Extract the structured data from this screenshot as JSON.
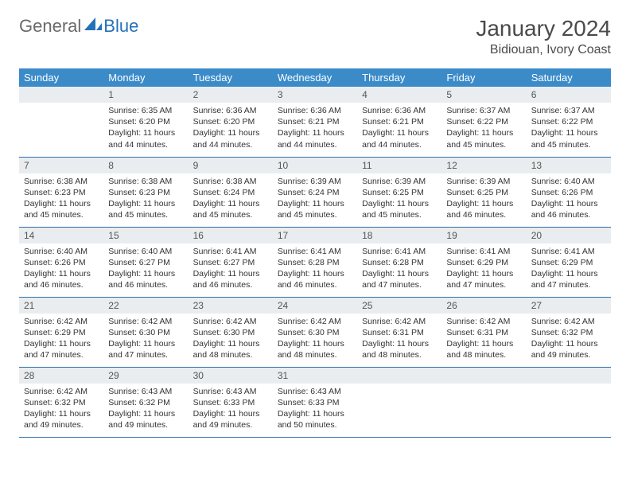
{
  "brand": {
    "part1": "General",
    "part2": "Blue"
  },
  "title": {
    "month": "January 2024",
    "location": "Bidiouan, Ivory Coast"
  },
  "colors": {
    "header_bg": "#3b8bc9",
    "header_text": "#ffffff",
    "daynum_bg": "#e9edf0",
    "row_border": "#2f6ea8",
    "logo_gray": "#6a6a6a",
    "logo_blue": "#2571b8"
  },
  "weekdays": [
    "Sunday",
    "Monday",
    "Tuesday",
    "Wednesday",
    "Thursday",
    "Friday",
    "Saturday"
  ],
  "layout": {
    "first_weekday_index": 1,
    "days_in_month": 31
  },
  "days": {
    "1": {
      "sunrise": "6:35 AM",
      "sunset": "6:20 PM",
      "daylight": "11 hours and 44 minutes."
    },
    "2": {
      "sunrise": "6:36 AM",
      "sunset": "6:20 PM",
      "daylight": "11 hours and 44 minutes."
    },
    "3": {
      "sunrise": "6:36 AM",
      "sunset": "6:21 PM",
      "daylight": "11 hours and 44 minutes."
    },
    "4": {
      "sunrise": "6:36 AM",
      "sunset": "6:21 PM",
      "daylight": "11 hours and 44 minutes."
    },
    "5": {
      "sunrise": "6:37 AM",
      "sunset": "6:22 PM",
      "daylight": "11 hours and 45 minutes."
    },
    "6": {
      "sunrise": "6:37 AM",
      "sunset": "6:22 PM",
      "daylight": "11 hours and 45 minutes."
    },
    "7": {
      "sunrise": "6:38 AM",
      "sunset": "6:23 PM",
      "daylight": "11 hours and 45 minutes."
    },
    "8": {
      "sunrise": "6:38 AM",
      "sunset": "6:23 PM",
      "daylight": "11 hours and 45 minutes."
    },
    "9": {
      "sunrise": "6:38 AM",
      "sunset": "6:24 PM",
      "daylight": "11 hours and 45 minutes."
    },
    "10": {
      "sunrise": "6:39 AM",
      "sunset": "6:24 PM",
      "daylight": "11 hours and 45 minutes."
    },
    "11": {
      "sunrise": "6:39 AM",
      "sunset": "6:25 PM",
      "daylight": "11 hours and 45 minutes."
    },
    "12": {
      "sunrise": "6:39 AM",
      "sunset": "6:25 PM",
      "daylight": "11 hours and 46 minutes."
    },
    "13": {
      "sunrise": "6:40 AM",
      "sunset": "6:26 PM",
      "daylight": "11 hours and 46 minutes."
    },
    "14": {
      "sunrise": "6:40 AM",
      "sunset": "6:26 PM",
      "daylight": "11 hours and 46 minutes."
    },
    "15": {
      "sunrise": "6:40 AM",
      "sunset": "6:27 PM",
      "daylight": "11 hours and 46 minutes."
    },
    "16": {
      "sunrise": "6:41 AM",
      "sunset": "6:27 PM",
      "daylight": "11 hours and 46 minutes."
    },
    "17": {
      "sunrise": "6:41 AM",
      "sunset": "6:28 PM",
      "daylight": "11 hours and 46 minutes."
    },
    "18": {
      "sunrise": "6:41 AM",
      "sunset": "6:28 PM",
      "daylight": "11 hours and 47 minutes."
    },
    "19": {
      "sunrise": "6:41 AM",
      "sunset": "6:29 PM",
      "daylight": "11 hours and 47 minutes."
    },
    "20": {
      "sunrise": "6:41 AM",
      "sunset": "6:29 PM",
      "daylight": "11 hours and 47 minutes."
    },
    "21": {
      "sunrise": "6:42 AM",
      "sunset": "6:29 PM",
      "daylight": "11 hours and 47 minutes."
    },
    "22": {
      "sunrise": "6:42 AM",
      "sunset": "6:30 PM",
      "daylight": "11 hours and 47 minutes."
    },
    "23": {
      "sunrise": "6:42 AM",
      "sunset": "6:30 PM",
      "daylight": "11 hours and 48 minutes."
    },
    "24": {
      "sunrise": "6:42 AM",
      "sunset": "6:30 PM",
      "daylight": "11 hours and 48 minutes."
    },
    "25": {
      "sunrise": "6:42 AM",
      "sunset": "6:31 PM",
      "daylight": "11 hours and 48 minutes."
    },
    "26": {
      "sunrise": "6:42 AM",
      "sunset": "6:31 PM",
      "daylight": "11 hours and 48 minutes."
    },
    "27": {
      "sunrise": "6:42 AM",
      "sunset": "6:32 PM",
      "daylight": "11 hours and 49 minutes."
    },
    "28": {
      "sunrise": "6:42 AM",
      "sunset": "6:32 PM",
      "daylight": "11 hours and 49 minutes."
    },
    "29": {
      "sunrise": "6:43 AM",
      "sunset": "6:32 PM",
      "daylight": "11 hours and 49 minutes."
    },
    "30": {
      "sunrise": "6:43 AM",
      "sunset": "6:33 PM",
      "daylight": "11 hours and 49 minutes."
    },
    "31": {
      "sunrise": "6:43 AM",
      "sunset": "6:33 PM",
      "daylight": "11 hours and 50 minutes."
    }
  },
  "labels": {
    "sunrise": "Sunrise:",
    "sunset": "Sunset:",
    "daylight": "Daylight:"
  }
}
